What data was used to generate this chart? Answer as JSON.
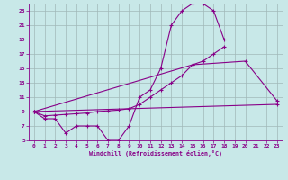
{
  "xlabel": "Windchill (Refroidissement éolien,°C)",
  "bg_color": "#c8e8e8",
  "grid_color": "#a0b8b8",
  "line_color": "#880088",
  "xlim": [
    -0.5,
    23.5
  ],
  "ylim": [
    5,
    24
  ],
  "xticks": [
    0,
    1,
    2,
    3,
    4,
    5,
    6,
    7,
    8,
    9,
    10,
    11,
    12,
    13,
    14,
    15,
    16,
    17,
    18,
    19,
    20,
    21,
    22,
    23
  ],
  "yticks": [
    5,
    7,
    9,
    11,
    13,
    15,
    17,
    19,
    21,
    23
  ],
  "line1_x": [
    0,
    1,
    2,
    3,
    4,
    5,
    6,
    7,
    8,
    9,
    10,
    11,
    12,
    13,
    14,
    15,
    16,
    17,
    18
  ],
  "line1_y": [
    9,
    8,
    8,
    6,
    7,
    7,
    7,
    5,
    5,
    7,
    11,
    12,
    15,
    21,
    23,
    24,
    24,
    23,
    19
  ],
  "line2_x": [
    0,
    1,
    2,
    3,
    4,
    5,
    6,
    7,
    8,
    9,
    10,
    11,
    12,
    13,
    14,
    15,
    16,
    17,
    18,
    19,
    20,
    21,
    22,
    23
  ],
  "line2_y": [
    9,
    8.4,
    8.5,
    8.6,
    8.7,
    8.8,
    9.0,
    9.1,
    9.2,
    9.4,
    10,
    11,
    12,
    13,
    14,
    15.5,
    16,
    17,
    18,
    null,
    null,
    null,
    null,
    null
  ],
  "line3_x": [
    0,
    15,
    20,
    23
  ],
  "line3_y": [
    9,
    15.5,
    16,
    10.5
  ],
  "line4_x": [
    0,
    23
  ],
  "line4_y": [
    9,
    10
  ]
}
